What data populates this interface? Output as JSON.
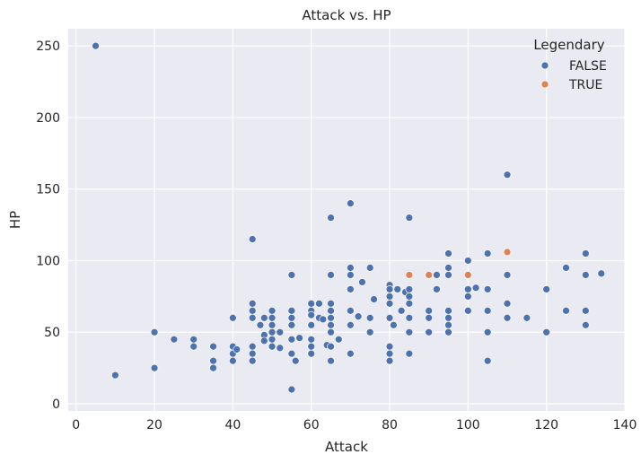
{
  "chart_data": {
    "type": "scatter",
    "title": "Attack vs. HP",
    "xlabel": "Attack",
    "ylabel": "HP",
    "xlim": [
      -2,
      140
    ],
    "ylim": [
      -5,
      262
    ],
    "xticks": [
      0,
      20,
      40,
      60,
      80,
      100,
      120,
      140
    ],
    "yticks": [
      0,
      50,
      100,
      150,
      200,
      250
    ],
    "grid": true,
    "legend": {
      "title": "Legendary",
      "placement": "top-right"
    },
    "series": [
      {
        "name": "FALSE",
        "color": "#4c72b0",
        "points": [
          [
            5,
            250
          ],
          [
            10,
            20
          ],
          [
            20,
            50
          ],
          [
            20,
            25
          ],
          [
            25,
            45
          ],
          [
            30,
            45
          ],
          [
            30,
            40
          ],
          [
            35,
            40
          ],
          [
            35,
            30
          ],
          [
            35,
            25
          ],
          [
            40,
            60
          ],
          [
            40,
            40
          ],
          [
            40,
            35
          ],
          [
            40,
            30
          ],
          [
            41,
            38
          ],
          [
            45,
            115
          ],
          [
            45,
            70
          ],
          [
            45,
            65
          ],
          [
            45,
            60
          ],
          [
            45,
            40
          ],
          [
            45,
            35
          ],
          [
            45,
            30
          ],
          [
            47,
            55
          ],
          [
            48,
            60
          ],
          [
            48,
            48
          ],
          [
            48,
            44
          ],
          [
            50,
            65
          ],
          [
            50,
            60
          ],
          [
            50,
            55
          ],
          [
            50,
            50
          ],
          [
            50,
            45
          ],
          [
            50,
            40
          ],
          [
            52,
            50
          ],
          [
            52,
            39
          ],
          [
            55,
            90
          ],
          [
            55,
            65
          ],
          [
            55,
            60
          ],
          [
            55,
            55
          ],
          [
            55,
            45
          ],
          [
            55,
            35
          ],
          [
            55,
            10
          ],
          [
            56,
            30
          ],
          [
            57,
            46
          ],
          [
            60,
            70
          ],
          [
            60,
            65
          ],
          [
            60,
            62
          ],
          [
            60,
            55
          ],
          [
            60,
            45
          ],
          [
            60,
            40
          ],
          [
            60,
            35
          ],
          [
            62,
            70
          ],
          [
            62,
            60
          ],
          [
            63,
            59
          ],
          [
            64,
            41
          ],
          [
            65,
            130
          ],
          [
            65,
            90
          ],
          [
            65,
            70
          ],
          [
            65,
            65
          ],
          [
            65,
            60
          ],
          [
            65,
            55
          ],
          [
            65,
            50
          ],
          [
            65,
            40
          ],
          [
            65,
            30
          ],
          [
            67,
            45
          ],
          [
            70,
            140
          ],
          [
            70,
            95
          ],
          [
            70,
            90
          ],
          [
            70,
            80
          ],
          [
            70,
            65
          ],
          [
            70,
            55
          ],
          [
            70,
            35
          ],
          [
            72,
            61
          ],
          [
            73,
            85
          ],
          [
            75,
            95
          ],
          [
            75,
            60
          ],
          [
            75,
            50
          ],
          [
            76,
            73
          ],
          [
            80,
            83
          ],
          [
            80,
            80
          ],
          [
            80,
            75
          ],
          [
            80,
            70
          ],
          [
            80,
            60
          ],
          [
            80,
            40
          ],
          [
            80,
            35
          ],
          [
            80,
            30
          ],
          [
            81,
            55
          ],
          [
            82,
            80
          ],
          [
            83,
            65
          ],
          [
            84,
            78
          ],
          [
            85,
            130
          ],
          [
            85,
            80
          ],
          [
            85,
            75
          ],
          [
            85,
            70
          ],
          [
            85,
            60
          ],
          [
            85,
            50
          ],
          [
            85,
            35
          ],
          [
            90,
            65
          ],
          [
            90,
            60
          ],
          [
            90,
            50
          ],
          [
            92,
            90
          ],
          [
            92,
            80
          ],
          [
            95,
            105
          ],
          [
            95,
            95
          ],
          [
            95,
            90
          ],
          [
            95,
            65
          ],
          [
            95,
            60
          ],
          [
            95,
            55
          ],
          [
            95,
            50
          ],
          [
            100,
            100
          ],
          [
            100,
            80
          ],
          [
            100,
            75
          ],
          [
            100,
            65
          ],
          [
            102,
            81
          ],
          [
            105,
            105
          ],
          [
            105,
            80
          ],
          [
            105,
            65
          ],
          [
            105,
            50
          ],
          [
            105,
            30
          ],
          [
            110,
            160
          ],
          [
            110,
            90
          ],
          [
            110,
            70
          ],
          [
            110,
            60
          ],
          [
            115,
            60
          ],
          [
            120,
            80
          ],
          [
            120,
            50
          ],
          [
            125,
            95
          ],
          [
            125,
            65
          ],
          [
            130,
            105
          ],
          [
            130,
            90
          ],
          [
            130,
            65
          ],
          [
            130,
            55
          ],
          [
            134,
            91
          ]
        ]
      },
      {
        "name": "TRUE",
        "color": "#dd8452",
        "points": [
          [
            85,
            90
          ],
          [
            90,
            90
          ],
          [
            100,
            90
          ],
          [
            110,
            106
          ]
        ]
      }
    ]
  }
}
